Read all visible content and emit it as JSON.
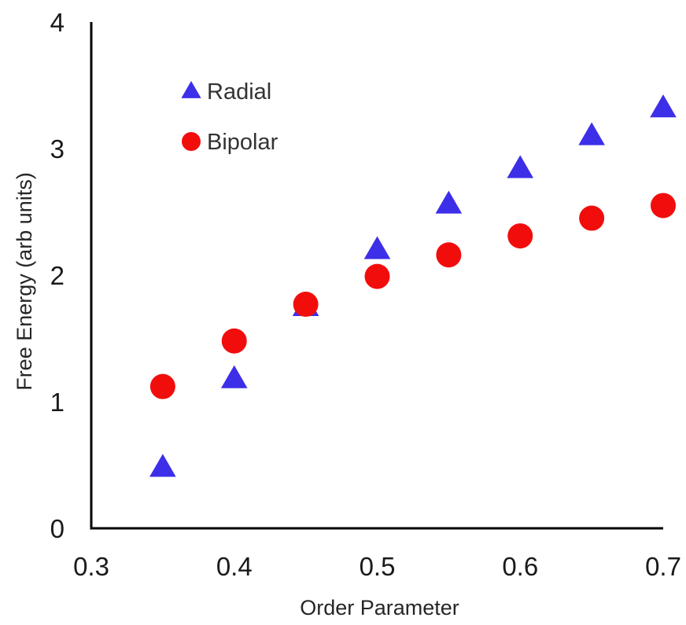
{
  "chart_data": {
    "type": "scatter",
    "title": "",
    "xlabel": "Order Parameter",
    "ylabel": "Free Energy (arb units)",
    "xlim": [
      0.3,
      0.7
    ],
    "ylim": [
      0,
      4
    ],
    "x_ticks": [
      0.3,
      0.4,
      0.5,
      0.6,
      0.7
    ],
    "x_tick_labels": [
      "0.3",
      "0.4",
      "0.5",
      "0.6",
      "0.7"
    ],
    "y_ticks": [
      0,
      1,
      2,
      3,
      4
    ],
    "y_tick_labels": [
      "0",
      "1",
      "2",
      "3",
      "4"
    ],
    "grid": false,
    "legend_position": "top-left",
    "series": [
      {
        "name": "Radial",
        "marker": "triangle",
        "color": "#3d2ee8",
        "x": [
          0.35,
          0.4,
          0.45,
          0.5,
          0.55,
          0.6,
          0.65,
          0.7
        ],
        "y": [
          0.48,
          1.18,
          1.75,
          2.2,
          2.56,
          2.84,
          3.1,
          3.32
        ]
      },
      {
        "name": "Bipolar",
        "marker": "circle",
        "color": "#f20d0d",
        "x": [
          0.35,
          0.4,
          0.45,
          0.5,
          0.55,
          0.6,
          0.65,
          0.7
        ],
        "y": [
          1.12,
          1.48,
          1.77,
          1.99,
          2.16,
          2.31,
          2.45,
          2.55
        ]
      }
    ]
  }
}
